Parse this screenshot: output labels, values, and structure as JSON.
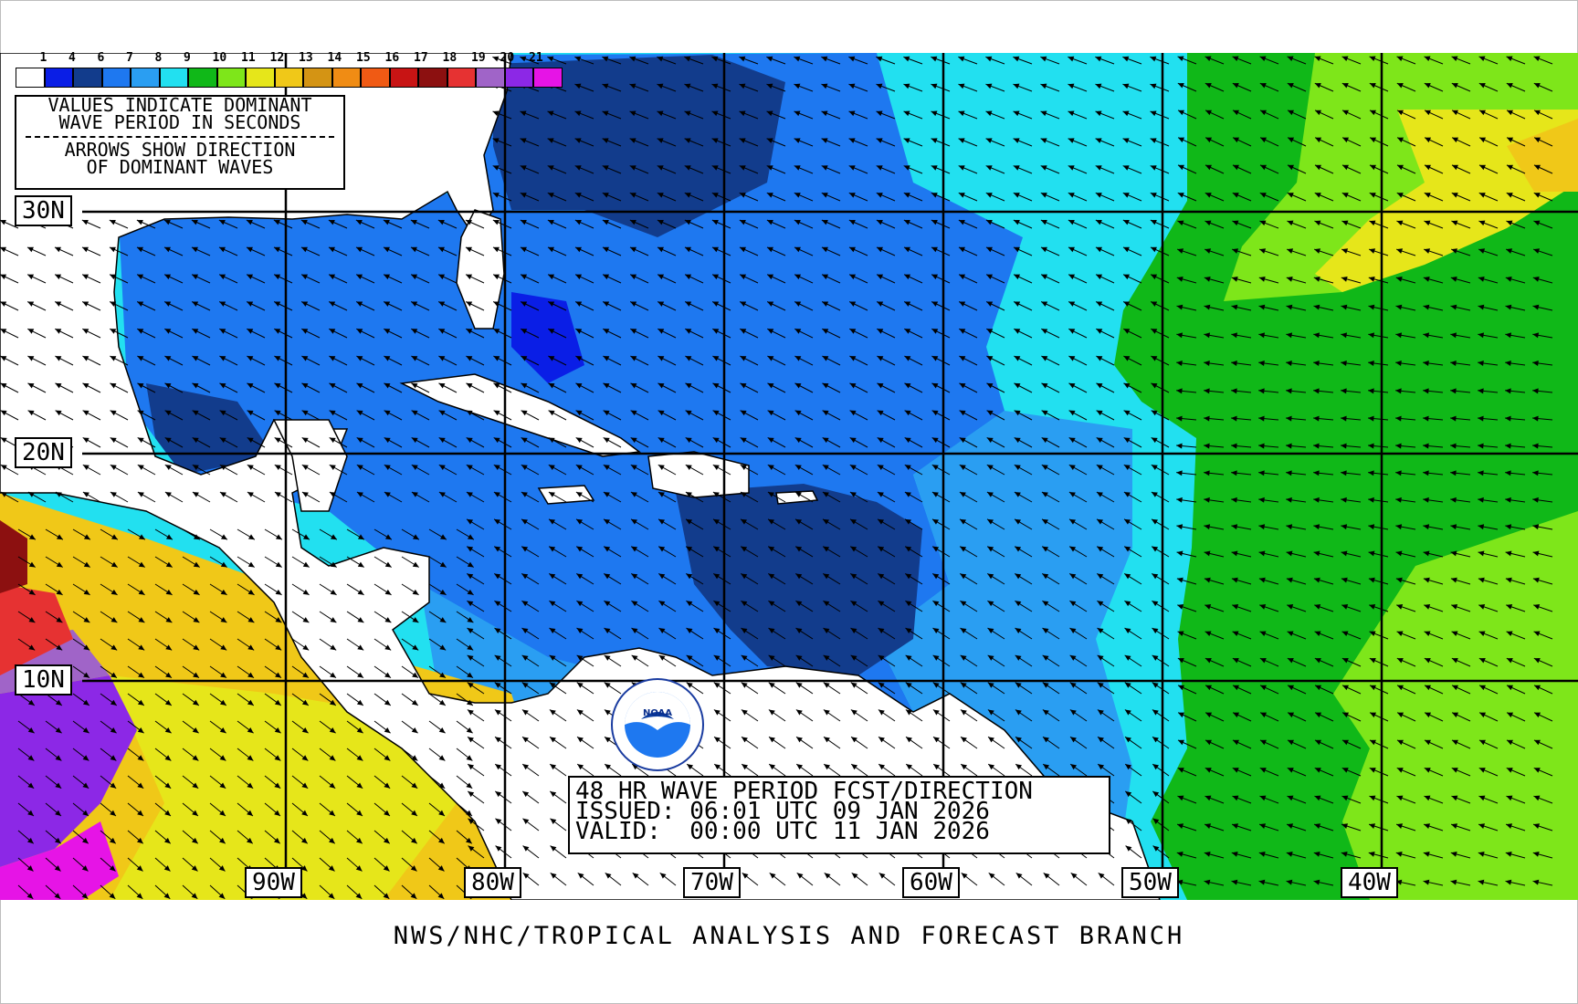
{
  "legend": {
    "line1": "VALUES INDICATE DOMINANT",
    "line2": "WAVE PERIOD IN SECONDS",
    "line3": "ARROWS SHOW DIRECTION",
    "line4": "OF DOMINANT WAVES",
    "scale_labels": [
      "1",
      "4",
      "6",
      "7",
      "8",
      "9",
      "10",
      "11",
      "12",
      "13",
      "14",
      "15",
      "16",
      "17",
      "18",
      "19",
      "20",
      "21"
    ],
    "scale_colors": [
      "#ffffff",
      "#0a1ee6",
      "#123c8c",
      "#1e78f0",
      "#2a9ef2",
      "#22e0f0",
      "#10b818",
      "#7ee61a",
      "#e6e61a",
      "#f0c818",
      "#d49414",
      "#f08c14",
      "#f05a14",
      "#c81414",
      "#8c1010",
      "#e63232",
      "#a064c8",
      "#8c28e6",
      "#e614e6"
    ]
  },
  "lat_labels": [
    "30N",
    "20N",
    "10N"
  ],
  "lon_labels": [
    "90W",
    "80W",
    "70W",
    "60W",
    "50W",
    "40W"
  ],
  "info": {
    "line1": "48 HR WAVE PERIOD FCST/DIRECTION",
    "line2": "ISSUED: 06:01 UTC 09 JAN 2026",
    "line3": "VALID:  00:00 UTC 11 JAN 2026"
  },
  "footer": "NWS/NHC/TROPICAL ANALYSIS AND FORECAST BRANCH",
  "logo": {
    "name": "noaa-logo",
    "text": "NOAA"
  },
  "colors": {
    "grid": "#000000",
    "land": "#ffffff",
    "coast": "#000000"
  }
}
